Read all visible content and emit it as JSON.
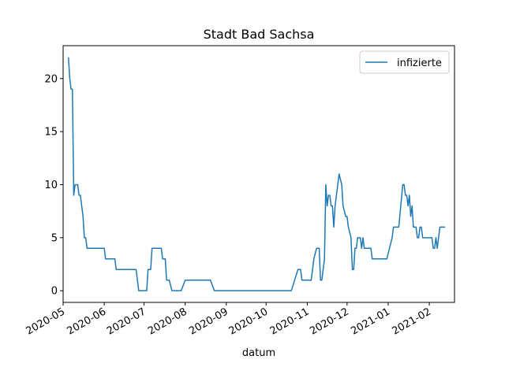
{
  "chart_data": {
    "type": "line",
    "title": "Stadt Bad Sachsa",
    "xlabel": "datum",
    "ylabel": "",
    "x_axis_type": "date",
    "xlim": [
      "2020-05-01",
      "2021-02-20"
    ],
    "ylim": [
      -1.1,
      23.1
    ],
    "xticks": [
      "2020-05-01",
      "2020-06-01",
      "2020-07-01",
      "2020-08-01",
      "2020-09-01",
      "2020-10-01",
      "2020-11-01",
      "2020-12-01",
      "2021-01-01",
      "2021-02-01"
    ],
    "xtick_labels": [
      "2020-05",
      "2020-06",
      "2020-07",
      "2020-08",
      "2020-09",
      "2020-10",
      "2020-11",
      "2020-12",
      "2021-01",
      "2021-02"
    ],
    "yticks": [
      0,
      5,
      10,
      15,
      20
    ],
    "ytick_labels": [
      "0",
      "5",
      "10",
      "15",
      "20"
    ],
    "grid": false,
    "legend_position": "top-right",
    "series": [
      {
        "name": "infizierte",
        "color": "#1f77b4",
        "points": [
          [
            "2020-05-05",
            22
          ],
          [
            "2020-05-06",
            20
          ],
          [
            "2020-05-07",
            19
          ],
          [
            "2020-05-08",
            19
          ],
          [
            "2020-05-09",
            9
          ],
          [
            "2020-05-10",
            10
          ],
          [
            "2020-05-12",
            10
          ],
          [
            "2020-05-13",
            9
          ],
          [
            "2020-05-14",
            9
          ],
          [
            "2020-05-15",
            8
          ],
          [
            "2020-05-16",
            7
          ],
          [
            "2020-05-17",
            5
          ],
          [
            "2020-05-18",
            5
          ],
          [
            "2020-05-19",
            4
          ],
          [
            "2020-06-01",
            4
          ],
          [
            "2020-06-02",
            3
          ],
          [
            "2020-06-09",
            3
          ],
          [
            "2020-06-10",
            2
          ],
          [
            "2020-06-25",
            2
          ],
          [
            "2020-06-27",
            0
          ],
          [
            "2020-07-03",
            0
          ],
          [
            "2020-07-04",
            2
          ],
          [
            "2020-07-06",
            2
          ],
          [
            "2020-07-07",
            4
          ],
          [
            "2020-07-14",
            4
          ],
          [
            "2020-07-15",
            3
          ],
          [
            "2020-07-17",
            3
          ],
          [
            "2020-07-18",
            1
          ],
          [
            "2020-07-20",
            1
          ],
          [
            "2020-07-22",
            0
          ],
          [
            "2020-07-29",
            0
          ],
          [
            "2020-08-01",
            1
          ],
          [
            "2020-08-20",
            1
          ],
          [
            "2020-08-23",
            0
          ],
          [
            "2020-10-20",
            0
          ],
          [
            "2020-10-25",
            2
          ],
          [
            "2020-10-27",
            2
          ],
          [
            "2020-10-28",
            1
          ],
          [
            "2020-11-04",
            1
          ],
          [
            "2020-11-06",
            3
          ],
          [
            "2020-11-08",
            4
          ],
          [
            "2020-11-10",
            4
          ],
          [
            "2020-11-11",
            1
          ],
          [
            "2020-11-12",
            1
          ],
          [
            "2020-11-14",
            3
          ],
          [
            "2020-11-15",
            10
          ],
          [
            "2020-11-16",
            8
          ],
          [
            "2020-11-17",
            9
          ],
          [
            "2020-11-18",
            9
          ],
          [
            "2020-11-19",
            8
          ],
          [
            "2020-11-20",
            8
          ],
          [
            "2020-11-21",
            6
          ],
          [
            "2020-11-22",
            8
          ],
          [
            "2020-11-24",
            10
          ],
          [
            "2020-11-25",
            11
          ],
          [
            "2020-11-26",
            10.5
          ],
          [
            "2020-11-27",
            10
          ],
          [
            "2020-11-28",
            8
          ],
          [
            "2020-11-29",
            7.5
          ],
          [
            "2020-11-30",
            7
          ],
          [
            "2020-12-01",
            7
          ],
          [
            "2020-12-02",
            6
          ],
          [
            "2020-12-03",
            5.5
          ],
          [
            "2020-12-04",
            5
          ],
          [
            "2020-12-05",
            2
          ],
          [
            "2020-12-06",
            2
          ],
          [
            "2020-12-07",
            4
          ],
          [
            "2020-12-08",
            4
          ],
          [
            "2020-12-09",
            5
          ],
          [
            "2020-12-10",
            5
          ],
          [
            "2020-12-11",
            5
          ],
          [
            "2020-12-12",
            4
          ],
          [
            "2020-12-13",
            5
          ],
          [
            "2020-12-14",
            4
          ],
          [
            "2020-12-19",
            4
          ],
          [
            "2020-12-20",
            3
          ],
          [
            "2020-12-31",
            3
          ],
          [
            "2021-01-04",
            5
          ],
          [
            "2021-01-05",
            6
          ],
          [
            "2021-01-09",
            6
          ],
          [
            "2021-01-12",
            10
          ],
          [
            "2021-01-13",
            10
          ],
          [
            "2021-01-14",
            9
          ],
          [
            "2021-01-15",
            9
          ],
          [
            "2021-01-16",
            8
          ],
          [
            "2021-01-17",
            9
          ],
          [
            "2021-01-18",
            7
          ],
          [
            "2021-01-19",
            8
          ],
          [
            "2021-01-20",
            6
          ],
          [
            "2021-01-22",
            6
          ],
          [
            "2021-01-23",
            5
          ],
          [
            "2021-01-24",
            5
          ],
          [
            "2021-01-25",
            6
          ],
          [
            "2021-01-26",
            6
          ],
          [
            "2021-01-27",
            5
          ],
          [
            "2021-02-03",
            5
          ],
          [
            "2021-02-04",
            4
          ],
          [
            "2021-02-05",
            4
          ],
          [
            "2021-02-06",
            5
          ],
          [
            "2021-02-07",
            4
          ],
          [
            "2021-02-08",
            5
          ],
          [
            "2021-02-09",
            6
          ],
          [
            "2021-02-13",
            6
          ]
        ]
      }
    ]
  }
}
